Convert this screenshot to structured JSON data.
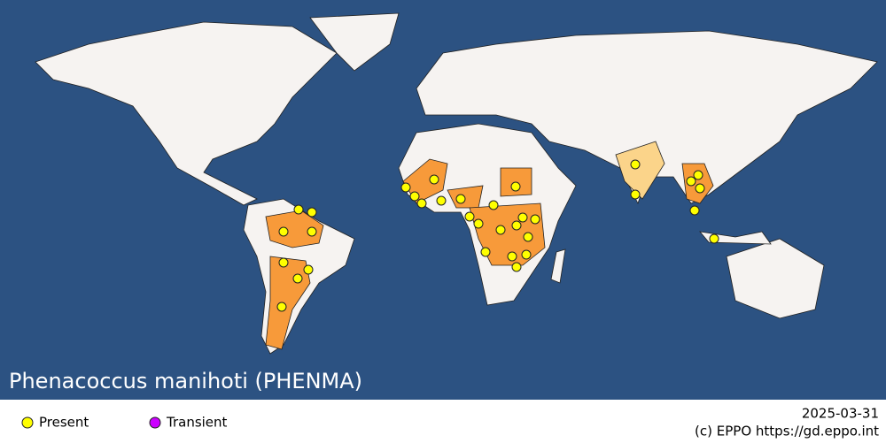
{
  "title": "Phenacoccus manihoti (PHENMA)",
  "legend": {
    "items": [
      "Present",
      "Transient"
    ]
  },
  "footer": {
    "date": "2025-03-31",
    "credit": "(c) EPPO https://gd.eppo.int"
  }
}
